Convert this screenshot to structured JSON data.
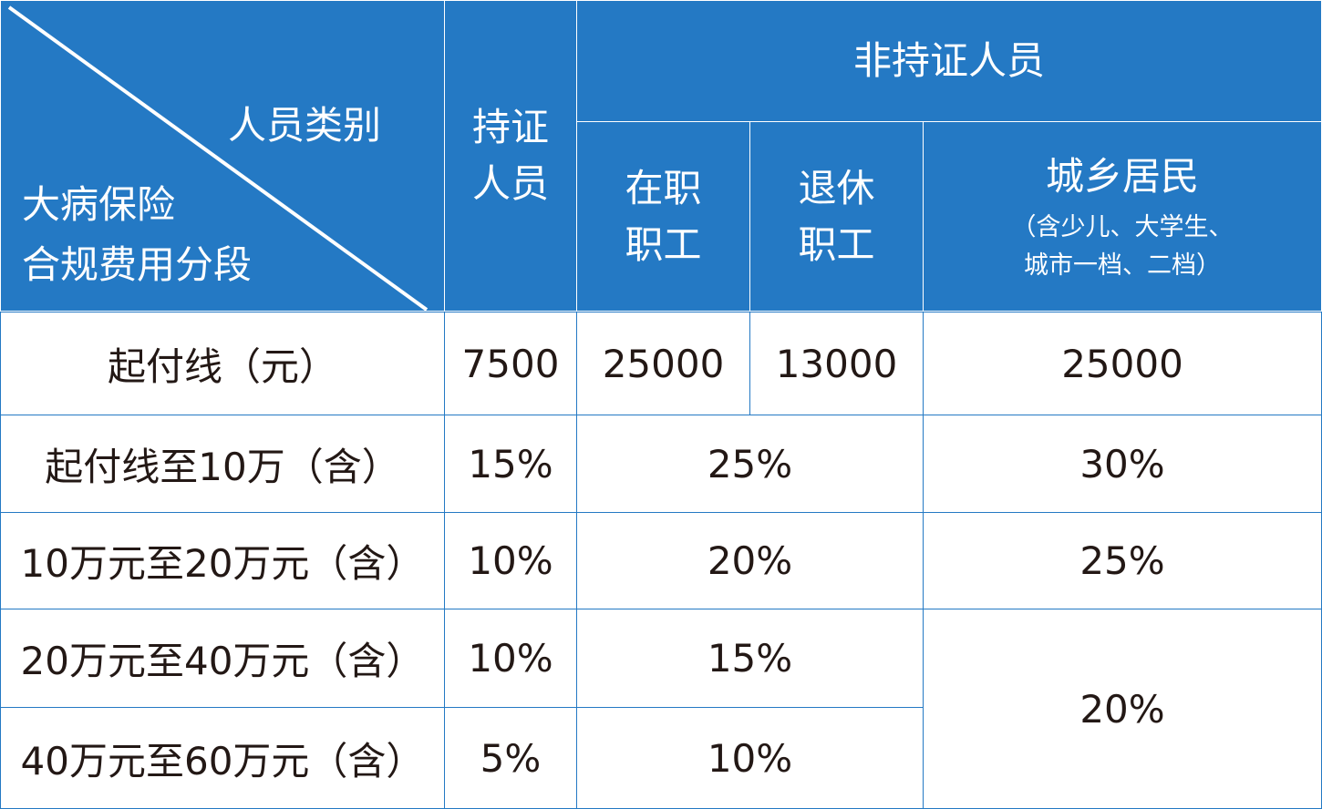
{
  "header": {
    "corner_top": "人员类别",
    "corner_bottom_line1": "大病保险",
    "corner_bottom_line2": "合规费用分段",
    "certified_line1": "持证",
    "certified_line2": "人员",
    "non_certified": "非持证人员",
    "employed_line1": "在职",
    "employed_line2": "职工",
    "retired_line1": "退休",
    "retired_line2": "职工",
    "residents": "城乡居民",
    "residents_note_line1": "（含少儿、大学生、",
    "residents_note_line2": "城市一档、二档）"
  },
  "rows": [
    {
      "label": "起付线（元）",
      "certified": "7500",
      "employed": "25000",
      "retired": "13000",
      "residents": "25000"
    },
    {
      "label": "起付线至10万（含）",
      "certified": "15%",
      "workers": "25%",
      "residents": "30%"
    },
    {
      "label": "10万元至20万元（含）",
      "certified": "10%",
      "workers": "20%",
      "residents": "25%"
    },
    {
      "label": "20万元至40万元（含）",
      "certified": "10%",
      "workers": "15%",
      "residents": "20%"
    },
    {
      "label": "40万元至60万元（含）",
      "certified": "5%",
      "workers": "10%"
    }
  ],
  "colors": {
    "header_bg": "#2479c4",
    "border": "#2479c4",
    "text": "#231815"
  }
}
